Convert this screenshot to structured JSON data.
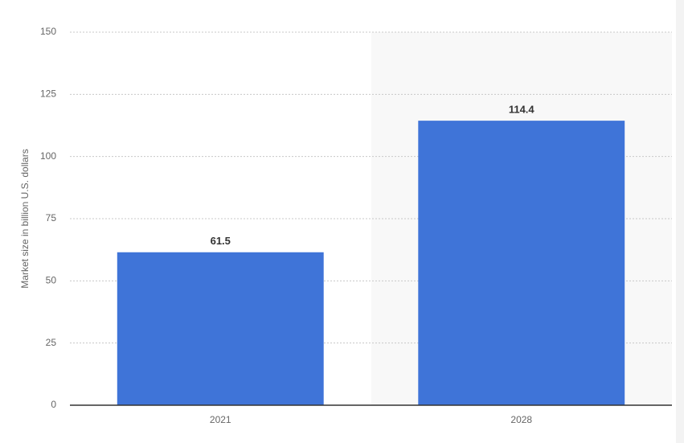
{
  "chart_data": {
    "type": "bar",
    "y_axis_label": "Market size in billion U.S. dollars",
    "categories": [
      "2021",
      "2028"
    ],
    "values": [
      61.5,
      114.4
    ],
    "color": "#3f74d8",
    "ylim": [
      0,
      150
    ],
    "yticks": [
      0,
      25,
      50,
      75,
      100,
      125,
      150
    ],
    "grid": true
  }
}
